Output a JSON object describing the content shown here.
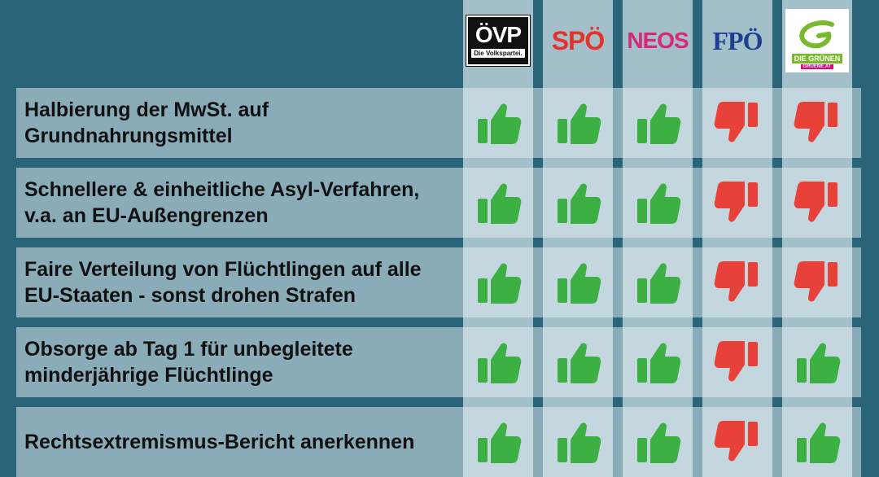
{
  "parties": [
    {
      "id": "oevp",
      "name": "ÖVP",
      "tagline": "Die Volkspartei.",
      "color": "#111111"
    },
    {
      "id": "spoe",
      "name": "SPÖ",
      "color": "#e2342b"
    },
    {
      "id": "neos",
      "name": "NEOS",
      "color": "#d5297a"
    },
    {
      "id": "fpoe",
      "name": "FPÖ",
      "color": "#1c3f8f"
    },
    {
      "id": "gruene",
      "name": "DIE GRÜNEN",
      "sub": "GRUENE.AT",
      "color": "#7ab82e"
    }
  ],
  "rows": [
    {
      "label": "Halbierung der MwSt. auf\nGrundnahrungsmittel",
      "votes": [
        "up",
        "up",
        "up",
        "down",
        "down"
      ]
    },
    {
      "label": "Schnellere & einheitliche Asyl-Verfahren,\nv.a. an EU-Außengrenzen",
      "votes": [
        "up",
        "up",
        "up",
        "down",
        "down"
      ]
    },
    {
      "label": "Faire Verteilung von Flüchtlingen auf alle\nEU-Staaten - sonst drohen Strafen",
      "votes": [
        "up",
        "up",
        "up",
        "down",
        "down"
      ]
    },
    {
      "label": "Obsorge ab Tag 1 für unbegleitete\nminderjährige Flüchtlinge",
      "votes": [
        "up",
        "up",
        "up",
        "down",
        "up"
      ]
    },
    {
      "label": "Rechtsextremismus-Bericht anerkennen",
      "votes": [
        "up",
        "up",
        "up",
        "down",
        "up"
      ]
    }
  ],
  "colors": {
    "up": "#3cb043",
    "down": "#e8413a"
  }
}
